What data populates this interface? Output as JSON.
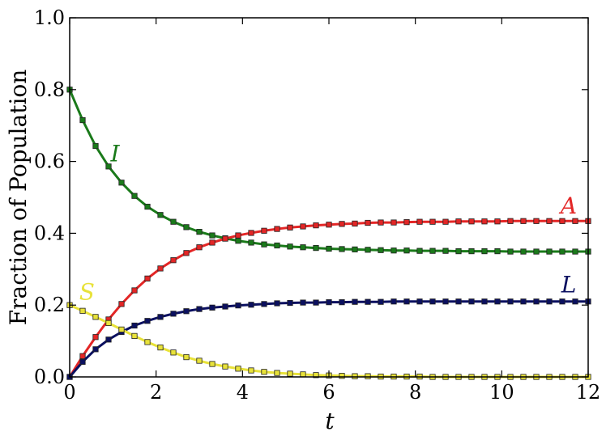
{
  "chart_data": {
    "type": "line",
    "xlabel": "t",
    "ylabel": "Fraction of Population",
    "xlim": [
      0,
      12
    ],
    "ylim": [
      0,
      1.0
    ],
    "xticks": [
      "0",
      "2",
      "4",
      "6",
      "8",
      "10",
      "12"
    ],
    "yticks": [
      "0.0",
      "0.2",
      "0.4",
      "0.6",
      "0.8",
      "1.0"
    ],
    "grid": false,
    "legend": "none (labels placed next to curves)",
    "series": [
      {
        "name": "I",
        "color": "#1a7a1a",
        "marker": "square",
        "x": [
          0,
          0.3,
          0.6,
          0.9,
          1.2,
          1.5,
          1.8,
          2.1,
          2.4,
          2.7,
          3.0,
          3.3,
          3.6,
          3.9,
          4.2,
          4.5,
          4.8,
          5.1,
          5.4,
          5.7,
          6.0,
          6.3,
          6.6,
          6.9,
          7.2,
          7.5,
          7.8,
          8.1,
          8.4,
          8.7,
          9.0,
          9.3,
          9.6,
          9.9,
          10.2,
          10.5,
          10.8,
          11.1,
          11.4,
          11.7,
          12.0
        ],
        "y": [
          0.8,
          0.715,
          0.643,
          0.586,
          0.541,
          0.504,
          0.474,
          0.451,
          0.432,
          0.417,
          0.404,
          0.394,
          0.386,
          0.379,
          0.374,
          0.369,
          0.366,
          0.363,
          0.361,
          0.359,
          0.357,
          0.356,
          0.355,
          0.354,
          0.353,
          0.352,
          0.352,
          0.351,
          0.351,
          0.351,
          0.35,
          0.35,
          0.35,
          0.35,
          0.349,
          0.349,
          0.349,
          0.349,
          0.349,
          0.349,
          0.349
        ]
      },
      {
        "name": "A",
        "color": "#e32626",
        "marker": "square",
        "x": [
          0,
          0.3,
          0.6,
          0.9,
          1.2,
          1.5,
          1.8,
          2.1,
          2.4,
          2.7,
          3.0,
          3.3,
          3.6,
          3.9,
          4.2,
          4.5,
          4.8,
          5.1,
          5.4,
          5.7,
          6.0,
          6.3,
          6.6,
          6.9,
          7.2,
          7.5,
          7.8,
          8.1,
          8.4,
          8.7,
          9.0,
          9.3,
          9.6,
          9.9,
          10.2,
          10.5,
          10.8,
          11.1,
          11.4,
          11.7,
          12.0
        ],
        "y": [
          0.0,
          0.058,
          0.111,
          0.16,
          0.203,
          0.241,
          0.274,
          0.302,
          0.325,
          0.345,
          0.361,
          0.374,
          0.385,
          0.394,
          0.401,
          0.407,
          0.412,
          0.416,
          0.419,
          0.422,
          0.424,
          0.426,
          0.427,
          0.429,
          0.43,
          0.43,
          0.431,
          0.432,
          0.432,
          0.432,
          0.433,
          0.433,
          0.433,
          0.433,
          0.434,
          0.434,
          0.434,
          0.434,
          0.434,
          0.434,
          0.434
        ]
      },
      {
        "name": "L",
        "color": "#0b1060",
        "marker": "square",
        "x": [
          0,
          0.3,
          0.6,
          0.9,
          1.2,
          1.5,
          1.8,
          2.1,
          2.4,
          2.7,
          3.0,
          3.3,
          3.6,
          3.9,
          4.2,
          4.5,
          4.8,
          5.1,
          5.4,
          5.7,
          6.0,
          6.3,
          6.6,
          6.9,
          7.2,
          7.5,
          7.8,
          8.1,
          8.4,
          8.7,
          9.0,
          9.3,
          9.6,
          9.9,
          10.2,
          10.5,
          10.8,
          11.1,
          11.4,
          11.7,
          12.0
        ],
        "y": [
          0.0,
          0.042,
          0.077,
          0.104,
          0.125,
          0.143,
          0.156,
          0.167,
          0.176,
          0.183,
          0.189,
          0.193,
          0.196,
          0.199,
          0.201,
          0.203,
          0.205,
          0.206,
          0.207,
          0.207,
          0.208,
          0.208,
          0.209,
          0.209,
          0.209,
          0.21,
          0.21,
          0.21,
          0.21,
          0.21,
          0.21,
          0.21,
          0.21,
          0.21,
          0.21,
          0.21,
          0.21,
          0.21,
          0.21,
          0.21,
          0.21
        ]
      },
      {
        "name": "S",
        "color": "#e8e23a",
        "marker": "square",
        "x": [
          0,
          0.3,
          0.6,
          0.9,
          1.2,
          1.5,
          1.8,
          2.1,
          2.4,
          2.7,
          3.0,
          3.3,
          3.6,
          3.9,
          4.2,
          4.5,
          4.8,
          5.1,
          5.4,
          5.7,
          6.0,
          6.3,
          6.6,
          6.9,
          7.2,
          7.5,
          7.8,
          8.1,
          8.4,
          8.7,
          9.0,
          9.3,
          9.6,
          9.9,
          10.2,
          10.5,
          10.8,
          11.1,
          11.4,
          11.7,
          12.0
        ],
        "y": [
          0.2,
          0.184,
          0.167,
          0.15,
          0.132,
          0.114,
          0.097,
          0.082,
          0.068,
          0.055,
          0.045,
          0.036,
          0.029,
          0.023,
          0.018,
          0.014,
          0.011,
          0.009,
          0.007,
          0.005,
          0.004,
          0.003,
          0.002,
          0.002,
          0.001,
          0.001,
          0.001,
          0.001,
          0.0,
          0.0,
          0.0,
          0.0,
          0.0,
          0.0,
          0.0,
          0.0,
          0.0,
          0.0,
          0.0,
          0.0,
          0.0
        ]
      }
    ],
    "series_labels": [
      {
        "text": "I",
        "color": "#1a7a1a",
        "x": 1.05,
        "y": 0.6
      },
      {
        "text": "A",
        "color": "#e32626",
        "x": 11.55,
        "y": 0.455
      },
      {
        "text": "L",
        "color": "#0b1060",
        "x": 11.55,
        "y": 0.235
      },
      {
        "text": "S",
        "color": "#e8e23a",
        "x": 0.4,
        "y": 0.215
      }
    ]
  }
}
